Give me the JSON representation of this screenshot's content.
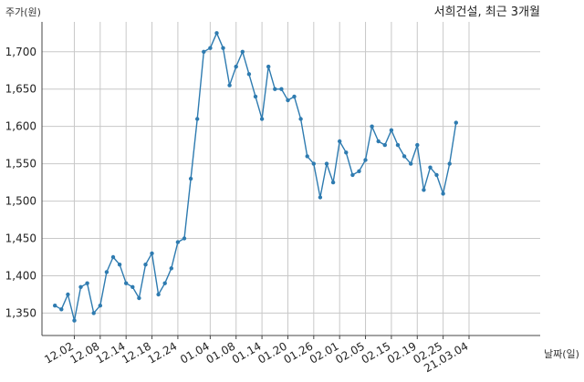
{
  "chart_data": {
    "type": "line",
    "title": "서희건설, 최근 3개월",
    "ylabel": "주가(원)",
    "xlabel": "날짜(일)",
    "ylim": [
      1320,
      1740
    ],
    "yticks": [
      1350,
      1400,
      1450,
      1500,
      1550,
      1600,
      1650,
      1700
    ],
    "ytick_labels": [
      "1,350",
      "1,400",
      "1,450",
      "1,500",
      "1,550",
      "1,600",
      "1,650",
      "1,700"
    ],
    "xlim": [
      -2,
      75
    ],
    "xticks": [
      3,
      7,
      11,
      15,
      19,
      24,
      28,
      32,
      36,
      40,
      44,
      48,
      52,
      56,
      60,
      64
    ],
    "xtick_labels": [
      "12.02",
      "12.08",
      "12.14",
      "12.18",
      "12.24",
      "01.04",
      "01.08",
      "01.14",
      "01.20",
      "01.26",
      "02.01",
      "02.05",
      "02.15",
      "02.19",
      "02.25",
      "21.03.04"
    ],
    "grid": true,
    "colors": {
      "line": "#2e7bb0",
      "grid": "#c8c8c8",
      "axis": "#444444"
    },
    "series": [
      {
        "values": [
          1360,
          1355,
          1375,
          1340,
          1385,
          1390,
          1350,
          1360,
          1405,
          1425,
          1415,
          1390,
          1385,
          1370,
          1415,
          1430,
          1375,
          1390,
          1410,
          1445,
          1450,
          1530,
          1610,
          1700,
          1705,
          1725,
          1705,
          1655,
          1680,
          1700,
          1670,
          1640,
          1610,
          1680,
          1650,
          1650,
          1635,
          1640,
          1610,
          1560,
          1550,
          1505,
          1550,
          1525,
          1580,
          1565,
          1535,
          1540,
          1555,
          1600,
          1580,
          1575,
          1595,
          1575,
          1560,
          1550,
          1575,
          1515,
          1545,
          1535,
          1510,
          1550,
          1605
        ]
      }
    ]
  }
}
